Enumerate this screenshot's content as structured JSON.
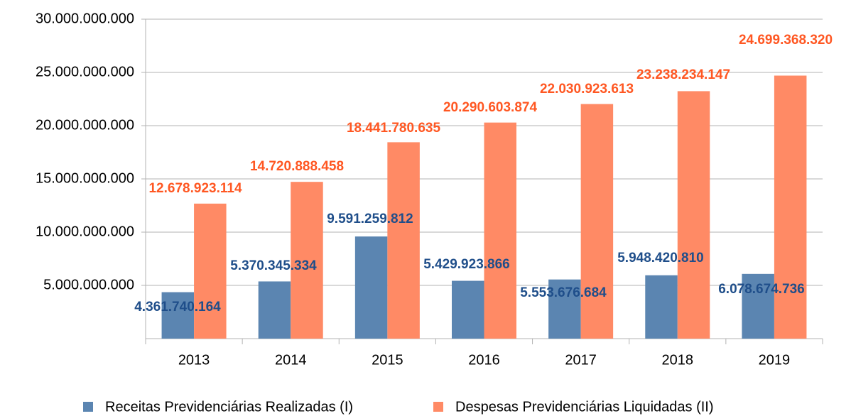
{
  "chart_data": {
    "type": "bar",
    "categories": [
      "2013",
      "2014",
      "2015",
      "2016",
      "2017",
      "2018",
      "2019"
    ],
    "series": [
      {
        "name": "Receitas Previdenciárias Realizadas (I)",
        "color": "#5b85b1",
        "values": [
          4361740164,
          5370345334,
          9591259812,
          5429923866,
          5553676684,
          5948420810,
          6078674736
        ],
        "value_labels": [
          "4.361.740.164",
          "5.370.345.334",
          "9.591.259.812",
          "5.429.923.866",
          "5.553.676.684",
          "5.948.420.810",
          "6.078.674.736"
        ],
        "label_color": "#1f4e8a"
      },
      {
        "name": "Despesas Previdenciárias Liquidadas (II)",
        "color": "#ff8a65",
        "values": [
          12678923114,
          14720888458,
          18441780635,
          20290603874,
          22030923613,
          23238234147,
          24699368320
        ],
        "value_labels": [
          "12.678.923.114",
          "14.720.888.458",
          "18.441.780.635",
          "20.290.603.874",
          "22.030.923.613",
          "23.238.234.147",
          "24.699.368.320"
        ],
        "label_color": "#ff5722"
      }
    ],
    "ylim": [
      0,
      30000000000
    ],
    "yticks": [
      {
        "value": 5000000000,
        "label": "5.000.000.000"
      },
      {
        "value": 10000000000,
        "label": "10.000.000.000"
      },
      {
        "value": 15000000000,
        "label": "15.000.000.000"
      },
      {
        "value": 20000000000,
        "label": "20.000.000.000"
      },
      {
        "value": 25000000000,
        "label": "25.000.000.000"
      },
      {
        "value": 30000000000,
        "label": "30.000.000.000"
      }
    ],
    "grid": true,
    "legend": "bottom"
  }
}
